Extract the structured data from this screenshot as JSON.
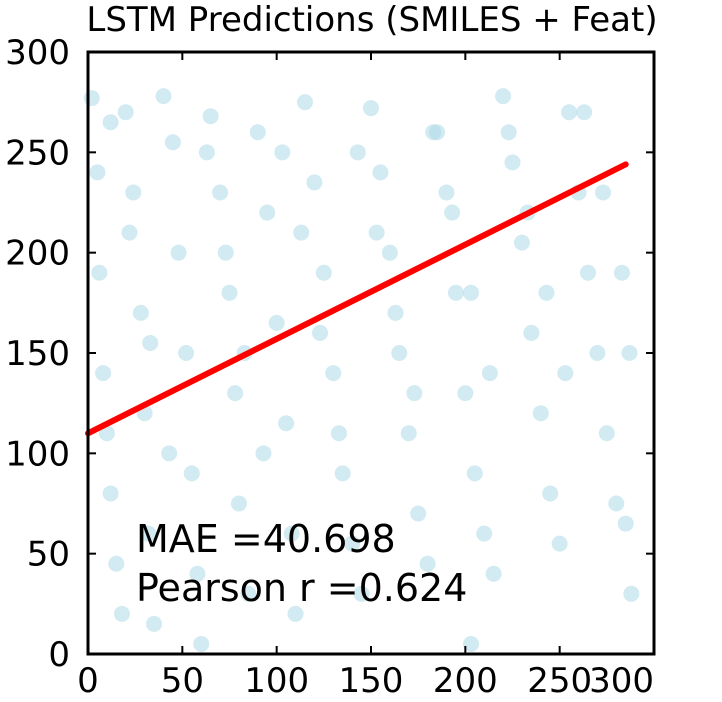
{
  "chart_data": {
    "type": "scatter",
    "title": "LSTM Predictions (SMILES + Feat)",
    "xlabel": "",
    "ylabel": "",
    "xlim": [
      0,
      300
    ],
    "ylim": [
      0,
      300
    ],
    "xticks": [
      "0",
      "50",
      "100",
      "150",
      "200",
      "250",
      "300"
    ],
    "yticks": [
      "0",
      "50",
      "100",
      "150",
      "200",
      "250",
      "300"
    ],
    "grid": false,
    "legend": "none",
    "annotations": [
      "MAE =40.698",
      "Pearson r =0.624"
    ],
    "series": [
      {
        "kind": "scatter-points",
        "color": "#add8e6",
        "alpha": 0.55,
        "points": [
          [
            2,
            277
          ],
          [
            5,
            240
          ],
          [
            6,
            190
          ],
          [
            8,
            140
          ],
          [
            10,
            110
          ],
          [
            12,
            80
          ],
          [
            15,
            45
          ],
          [
            18,
            20
          ],
          [
            20,
            270
          ],
          [
            24,
            230
          ],
          [
            28,
            170
          ],
          [
            30,
            120
          ],
          [
            32,
            60
          ],
          [
            35,
            15
          ],
          [
            40,
            278
          ],
          [
            45,
            255
          ],
          [
            48,
            200
          ],
          [
            52,
            150
          ],
          [
            55,
            90
          ],
          [
            58,
            40
          ],
          [
            60,
            5
          ],
          [
            65,
            268
          ],
          [
            70,
            230
          ],
          [
            75,
            180
          ],
          [
            78,
            130
          ],
          [
            80,
            75
          ],
          [
            85,
            30
          ],
          [
            90,
            260
          ],
          [
            95,
            220
          ],
          [
            100,
            165
          ],
          [
            105,
            115
          ],
          [
            108,
            60
          ],
          [
            110,
            20
          ],
          [
            115,
            275
          ],
          [
            120,
            235
          ],
          [
            125,
            190
          ],
          [
            130,
            140
          ],
          [
            135,
            90
          ],
          [
            140,
            55
          ],
          [
            145,
            30
          ],
          [
            150,
            272
          ],
          [
            155,
            240
          ],
          [
            160,
            200
          ],
          [
            165,
            150
          ],
          [
            170,
            110
          ],
          [
            175,
            70
          ],
          [
            180,
            45
          ],
          [
            185,
            260
          ],
          [
            190,
            230
          ],
          [
            195,
            180
          ],
          [
            200,
            130
          ],
          [
            205,
            90
          ],
          [
            210,
            60
          ],
          [
            215,
            40
          ],
          [
            220,
            278
          ],
          [
            225,
            245
          ],
          [
            230,
            205
          ],
          [
            235,
            160
          ],
          [
            240,
            120
          ],
          [
            245,
            80
          ],
          [
            250,
            55
          ],
          [
            255,
            270
          ],
          [
            260,
            230
          ],
          [
            265,
            190
          ],
          [
            270,
            150
          ],
          [
            275,
            110
          ],
          [
            280,
            75
          ],
          [
            285,
            65
          ],
          [
            288,
            30
          ],
          [
            203,
            5
          ],
          [
            12,
            265
          ],
          [
            22,
            210
          ],
          [
            33,
            155
          ],
          [
            43,
            100
          ],
          [
            63,
            250
          ],
          [
            73,
            200
          ],
          [
            83,
            150
          ],
          [
            93,
            100
          ],
          [
            103,
            250
          ],
          [
            113,
            210
          ],
          [
            123,
            160
          ],
          [
            133,
            110
          ],
          [
            143,
            250
          ],
          [
            153,
            210
          ],
          [
            163,
            170
          ],
          [
            173,
            130
          ],
          [
            183,
            260
          ],
          [
            193,
            220
          ],
          [
            203,
            180
          ],
          [
            213,
            140
          ],
          [
            223,
            260
          ],
          [
            233,
            220
          ],
          [
            243,
            180
          ],
          [
            253,
            140
          ],
          [
            263,
            270
          ],
          [
            273,
            230
          ],
          [
            283,
            190
          ],
          [
            287,
            150
          ]
        ]
      },
      {
        "kind": "regression-line",
        "color": "#ff0000",
        "points": [
          [
            0,
            110
          ],
          [
            285,
            244
          ]
        ]
      }
    ]
  }
}
